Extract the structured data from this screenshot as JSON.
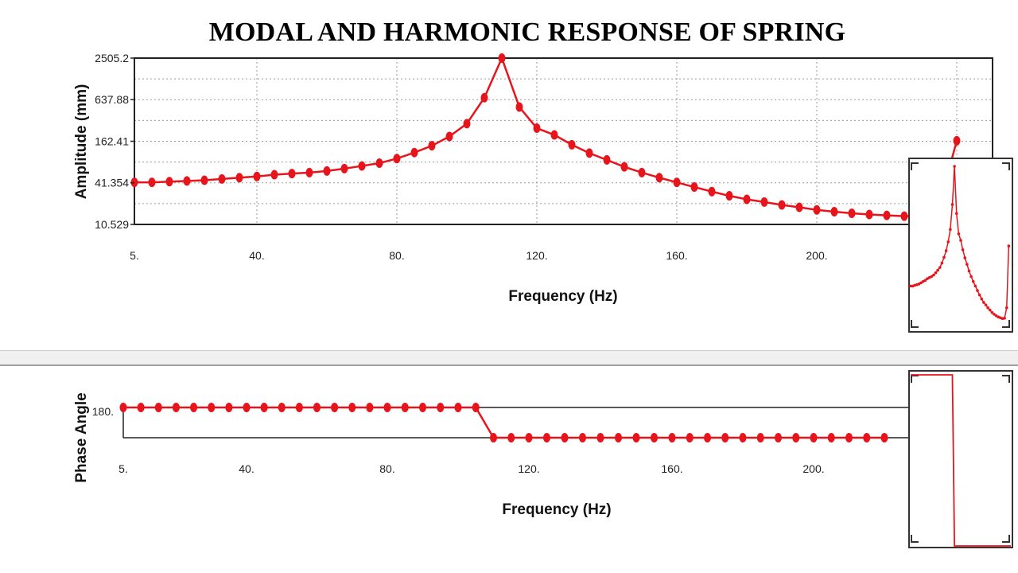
{
  "title": "MODAL AND HARMONIC RESPONSE OF SPRING",
  "colors": {
    "series": "#e8141c",
    "frame": "#222222",
    "grid": "#9a9a9a",
    "divider": "#d8d8d8"
  },
  "chart_data": [
    {
      "type": "line",
      "name": "amplitude",
      "xlabel": "Frequency (Hz)",
      "ylabel": "Amplitude (mm)",
      "yscale": "log",
      "grid": true,
      "x_ticks": [
        "5.",
        "40.",
        "80.",
        "120.",
        "160.",
        "200."
      ],
      "y_ticks": [
        "2505.2",
        "637.88",
        "162.41",
        "41.354",
        "10.529"
      ],
      "xlim": [
        5,
        240
      ],
      "ylim": [
        10.529,
        2505.2
      ],
      "x": [
        5,
        10,
        15,
        20,
        25,
        30,
        35,
        40,
        45,
        50,
        55,
        60,
        65,
        70,
        75,
        80,
        85,
        90,
        95,
        100,
        105,
        110,
        115,
        120,
        125,
        130,
        135,
        140,
        145,
        150,
        155,
        160,
        165,
        170,
        175,
        180,
        185,
        190,
        195,
        200,
        205,
        210,
        215,
        220,
        225,
        230,
        235,
        240
      ],
      "y": [
        42,
        42,
        43,
        44,
        45,
        47,
        49,
        51,
        54,
        56,
        58,
        61,
        66,
        72,
        79,
        92,
        112,
        140,
        190,
        290,
        680,
        2505,
        500,
        250,
        200,
        145,
        110,
        88,
        70,
        58,
        49,
        42,
        36,
        31,
        27,
        24,
        22,
        20,
        18.5,
        17,
        16,
        15.2,
        14.6,
        14.2,
        13.8,
        14,
        20,
        165
      ]
    },
    {
      "type": "line",
      "name": "phase",
      "xlabel": "Frequency (Hz)",
      "ylabel": "Phase Angle",
      "grid": false,
      "x_ticks": [
        "5.",
        "40.",
        "80.",
        "120.",
        "160.",
        "200."
      ],
      "y_ticks": [
        "180."
      ],
      "xlim": [
        5,
        225
      ],
      "ylim": [
        0,
        180
      ],
      "x": [
        5,
        10,
        15,
        20,
        25,
        30,
        35,
        40,
        45,
        50,
        55,
        60,
        65,
        70,
        75,
        80,
        85,
        90,
        95,
        100,
        105,
        110,
        115,
        120,
        125,
        130,
        135,
        140,
        145,
        150,
        155,
        160,
        165,
        170,
        175,
        180,
        185,
        190,
        195,
        200,
        205,
        210,
        215,
        220
      ],
      "y": [
        180,
        180,
        180,
        180,
        180,
        180,
        180,
        180,
        180,
        180,
        180,
        180,
        180,
        180,
        180,
        180,
        180,
        180,
        180,
        180,
        180,
        0,
        0,
        0,
        0,
        0,
        0,
        0,
        0,
        0,
        0,
        0,
        0,
        0,
        0,
        0,
        0,
        0,
        0,
        0,
        0,
        0,
        0,
        0
      ]
    }
  ]
}
